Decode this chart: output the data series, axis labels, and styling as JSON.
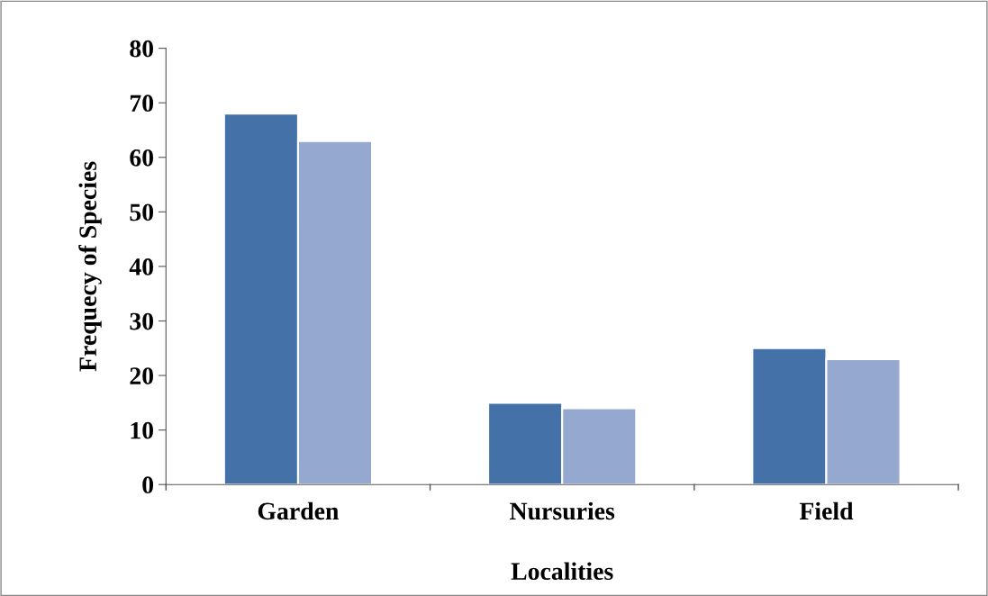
{
  "chart_data": {
    "type": "bar",
    "xlabel": "Localities",
    "ylabel": "Frequecy of Species",
    "categories": [
      "Garden",
      "Nursuries",
      "Field"
    ],
    "series": [
      {
        "color": "#4472a8",
        "values": [
          68,
          15,
          25
        ]
      },
      {
        "color": "#95a9d0",
        "values": [
          63,
          14,
          23
        ]
      }
    ],
    "ylim": [
      0,
      80
    ],
    "yticks": [
      0,
      10,
      20,
      30,
      40,
      50,
      60,
      70,
      80
    ],
    "grid": false,
    "legend": false
  }
}
